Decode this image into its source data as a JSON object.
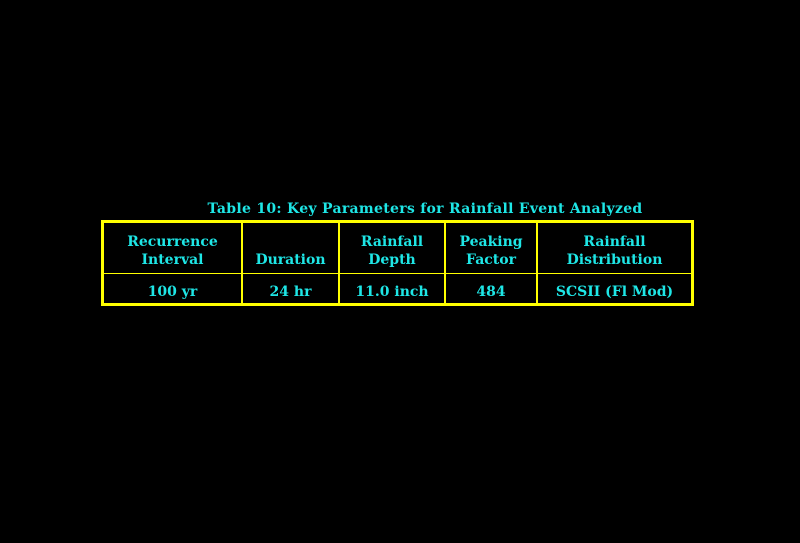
{
  "title": "Table 10: Key Parameters for Rainfall Event Analyzed",
  "colors": {
    "text": "#1ee6e6",
    "border": "#ffff00",
    "background": "#000000"
  },
  "table": {
    "headers": [
      [
        "Recurrence",
        "Interval"
      ],
      [
        "",
        "Duration"
      ],
      [
        "Rainfall",
        "Depth"
      ],
      [
        "Peaking",
        "Factor"
      ],
      [
        "Rainfall",
        "Distribution"
      ]
    ],
    "rows": [
      [
        "100 yr",
        "24 hr",
        "11.0 inch",
        "484",
        "SCSII (Fl Mod)"
      ]
    ]
  }
}
